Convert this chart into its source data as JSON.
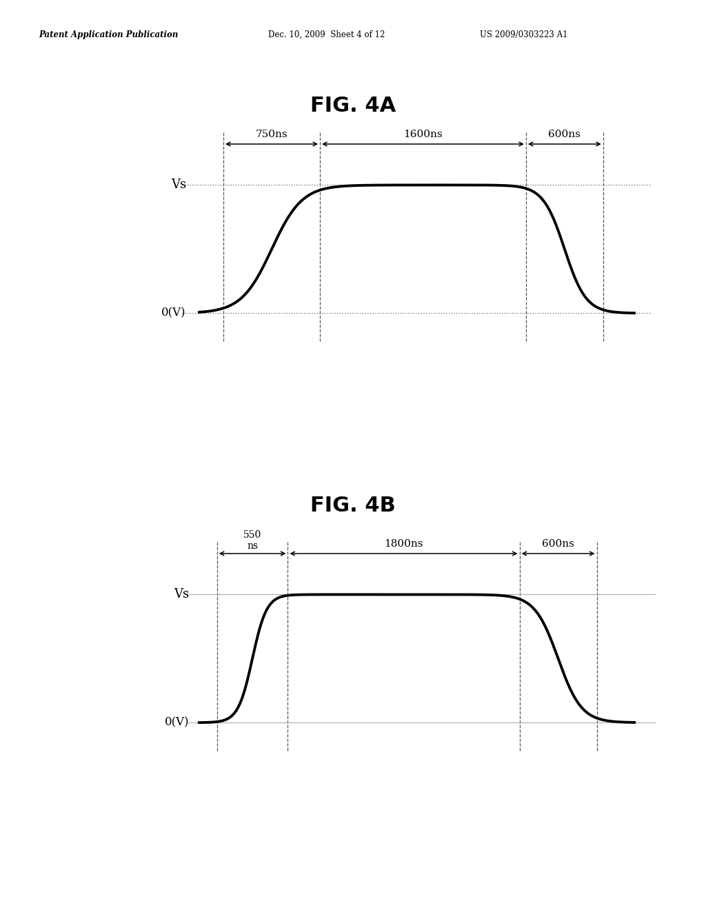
{
  "header_left": "Patent Application Publication",
  "header_center": "Dec. 10, 2009  Sheet 4 of 12",
  "header_right": "US 2009/0303223 A1",
  "fig4a_title": "FIG. 4A",
  "fig4b_title": "FIG. 4B",
  "fig4a": {
    "pre": 200,
    "rise": 750,
    "flat": 1600,
    "fall": 600,
    "post": 250,
    "k_rise": 0.0085,
    "k_fall": 0.012,
    "vs_label": "Vs",
    "zero_label": "0(V)",
    "segment_labels": [
      "750ns",
      "1600ns",
      "600ns"
    ]
  },
  "fig4b": {
    "pre": 150,
    "rise": 550,
    "flat": 1800,
    "fall": 600,
    "post": 300,
    "k_rise": 0.018,
    "k_fall": 0.011,
    "vs_label": "Vs",
    "zero_label": "0(V)",
    "segment_labels": [
      "550\nns",
      "1800ns",
      "600ns"
    ]
  },
  "bg_color": "#ffffff"
}
